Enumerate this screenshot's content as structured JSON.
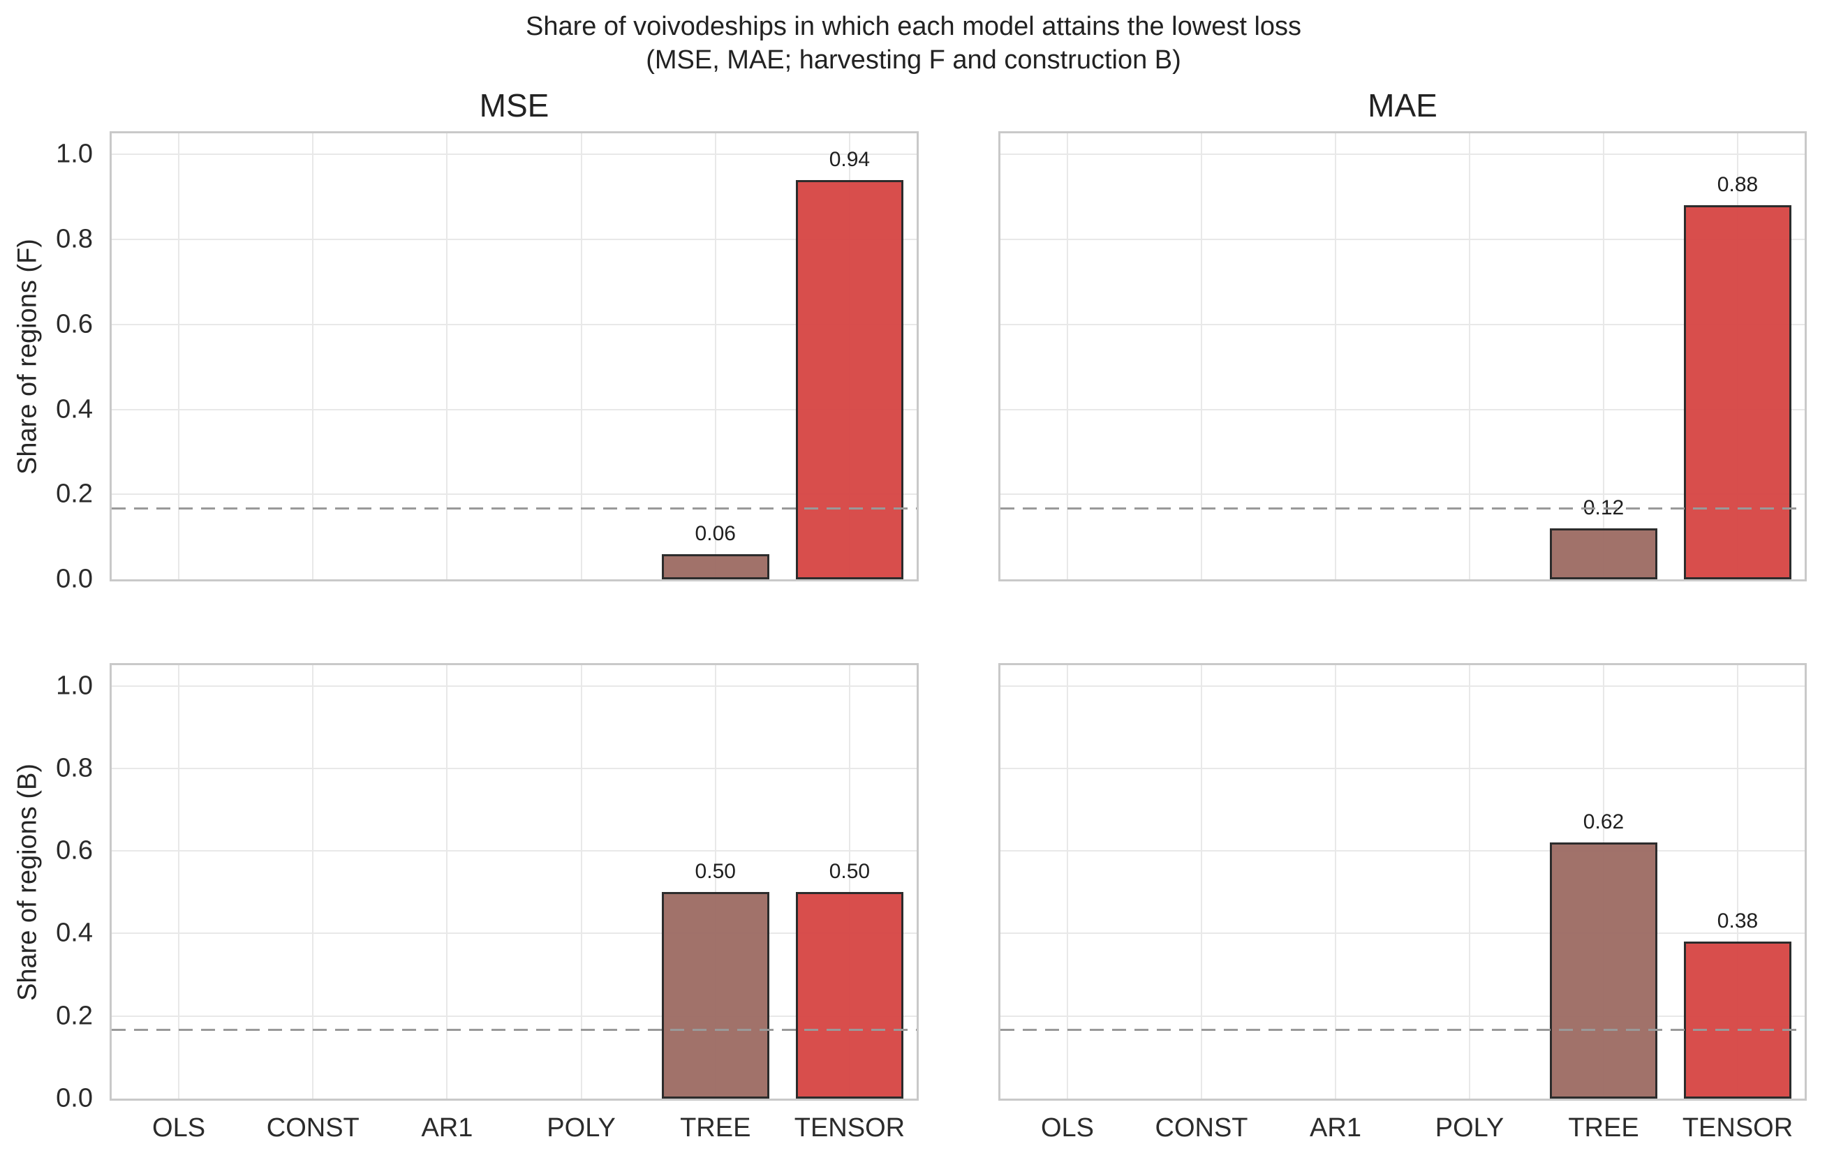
{
  "figure": {
    "title_line1": "Share of voivodeships in which each model attains the lowest loss",
    "title_line2": "(MSE, MAE; harvesting F and construction B)"
  },
  "chart_data": {
    "type": "bar",
    "layout": "2x2 subplot grid; columns are loss metrics, rows are scenarios F and B",
    "categories": [
      "OLS",
      "CONST",
      "AR1",
      "POLY",
      "TREE",
      "TENSOR"
    ],
    "col_titles": [
      "MSE",
      "MAE"
    ],
    "row_ylabels": [
      "Share of regions (F)",
      "Share of regions (B)"
    ],
    "ytick_labels": [
      "0.0",
      "0.2",
      "0.4",
      "0.6",
      "0.8",
      "1.0"
    ],
    "ylim": [
      0,
      1.05
    ],
    "grid": true,
    "legend": false,
    "reference_line_y": 0.167,
    "subplots": [
      {
        "metric": "MSE",
        "scenario": "F",
        "values": [
          0,
          0,
          0,
          0,
          0.06,
          0.94
        ],
        "bar_labels": [
          "",
          "",
          "",
          "",
          "0.06",
          "0.94"
        ]
      },
      {
        "metric": "MAE",
        "scenario": "F",
        "values": [
          0,
          0,
          0,
          0,
          0.12,
          0.88
        ],
        "bar_labels": [
          "",
          "",
          "",
          "",
          "0.12",
          "0.88"
        ]
      },
      {
        "metric": "MSE",
        "scenario": "B",
        "values": [
          0,
          0,
          0,
          0,
          0.5,
          0.5
        ],
        "bar_labels": [
          "",
          "",
          "",
          "",
          "0.50",
          "0.50"
        ]
      },
      {
        "metric": "MAE",
        "scenario": "B",
        "values": [
          0,
          0,
          0,
          0,
          0.62,
          0.38
        ],
        "bar_labels": [
          "",
          "",
          "",
          "",
          "0.62",
          "0.38"
        ]
      }
    ],
    "colors": {
      "tree_bar": "#9e6e66",
      "tensor_bar": "#d74947",
      "bar_edge": "#262626",
      "grid_line": "#e8e8e8",
      "spine": "#c9c9c9",
      "reference_line": "#999999",
      "text": "#262626"
    }
  }
}
